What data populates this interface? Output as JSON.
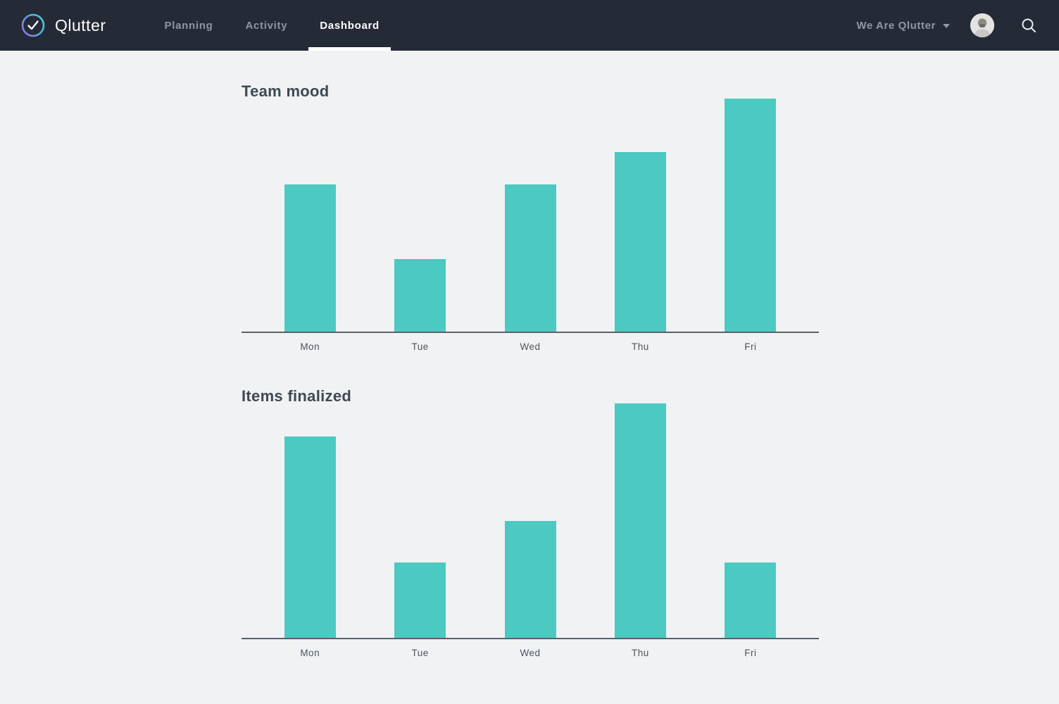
{
  "colors": {
    "navbar_bg": "#242b37",
    "page_bg": "#f1f2f4",
    "bar_teal": "#4cc9c1",
    "axis_line": "#59616b",
    "active_tab_text": "#ffffff",
    "inactive_tab_text": "#8d96a2",
    "logo_gradient": [
      "#8c7ae6",
      "#4fcdd6"
    ]
  },
  "navbar": {
    "brand": "Qlutter",
    "logo_icon": "check-circle",
    "items": [
      {
        "label": "Planning"
      },
      {
        "label": "Activity"
      },
      {
        "label": "Dashboard"
      }
    ],
    "active_item": "Dashboard",
    "team_selector": {
      "label": "We Are Qlutter",
      "icon": "chevron-down"
    },
    "avatar": "user-photo",
    "search_icon": "magnifier"
  },
  "chart_data": [
    {
      "type": "bar",
      "title": "Team mood",
      "categories": [
        "Mon",
        "Tue",
        "Wed",
        "Thu",
        "Fri"
      ],
      "values": [
        63,
        31,
        63,
        77,
        100
      ],
      "ylim": [
        0,
        100
      ],
      "xlabel": "",
      "ylabel": "",
      "grid": false,
      "legend": false,
      "bar_color": "#4cc9c1",
      "note": "no y-axis ticks shown; values estimated relative to tallest bar = 100"
    },
    {
      "type": "bar",
      "title": "Items finalized",
      "categories": [
        "Mon",
        "Tue",
        "Wed",
        "Thu",
        "Fri"
      ],
      "values": [
        86,
        32,
        50,
        100,
        32
      ],
      "ylim": [
        0,
        100
      ],
      "xlabel": "",
      "ylabel": "",
      "grid": false,
      "legend": false,
      "bar_color": "#4cc9c1",
      "note": "no y-axis ticks shown; values estimated relative to tallest bar = 100"
    }
  ]
}
